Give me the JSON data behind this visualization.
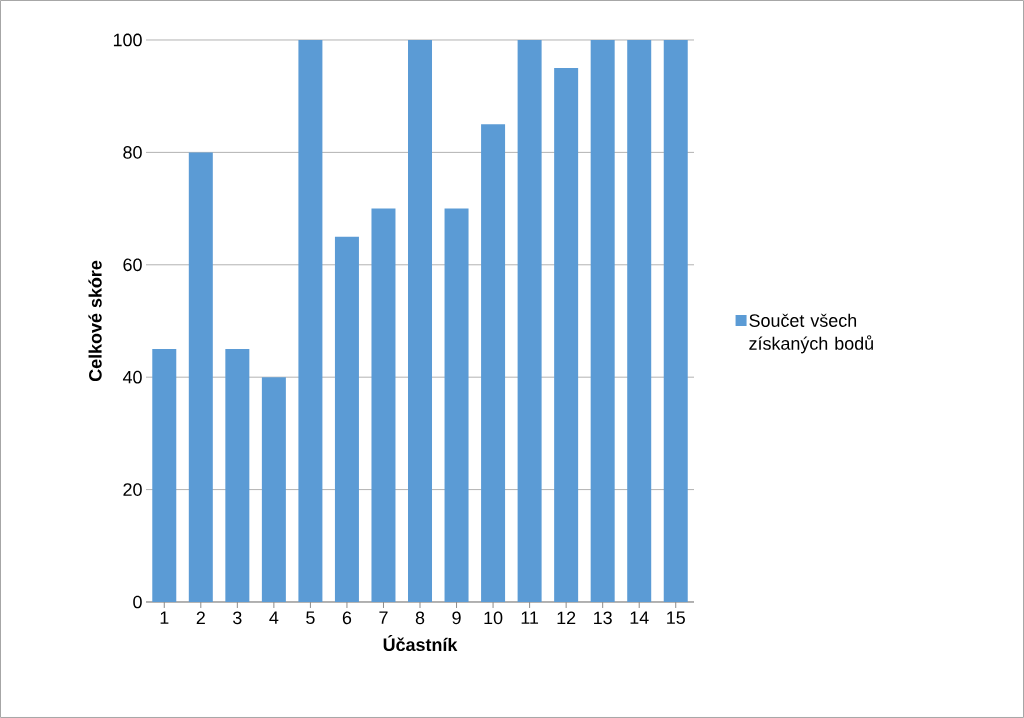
{
  "chart_data": {
    "type": "bar",
    "xlabel": "Účastník",
    "ylabel": "Celkové skóre",
    "categories": [
      "1",
      "2",
      "3",
      "4",
      "5",
      "6",
      "7",
      "8",
      "9",
      "10",
      "11",
      "12",
      "13",
      "14",
      "15"
    ],
    "series": [
      {
        "name": "Součet všech získaných bodů",
        "color": "#5b9bd5",
        "values": [
          45,
          80,
          45,
          40,
          100,
          65,
          70,
          100,
          70,
          85,
          100,
          95,
          100,
          100,
          100
        ]
      }
    ],
    "ylim": [
      0,
      100
    ],
    "yticks": [
      0,
      20,
      40,
      60,
      80,
      100
    ],
    "grid": "y",
    "legend": "right"
  }
}
